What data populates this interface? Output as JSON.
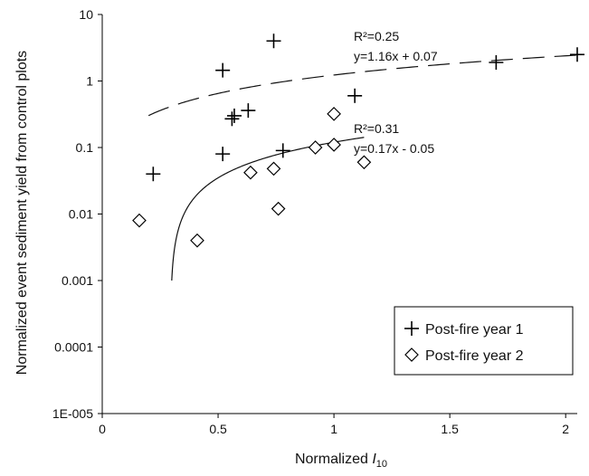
{
  "chart_data": {
    "type": "scatter",
    "xlabel": "Normalized ",
    "xlabel_italic": "I",
    "xlabel_sub": "10",
    "ylabel": "Normalized event sediment yield from control plots",
    "xlim": [
      0,
      2.05
    ],
    "ylim": [
      1e-05,
      10
    ],
    "y_scale": "log",
    "grid": false,
    "legend_position": "bottom-right",
    "x_ticks": [
      {
        "value": 0,
        "label": "0"
      },
      {
        "value": 0.5,
        "label": "0.5"
      },
      {
        "value": 1,
        "label": "1"
      },
      {
        "value": 1.5,
        "label": "1.5"
      },
      {
        "value": 2,
        "label": "2"
      }
    ],
    "y_ticks": [
      {
        "value": 10,
        "label": "10"
      },
      {
        "value": 1,
        "label": "1"
      },
      {
        "value": 0.1,
        "label": "0.1"
      },
      {
        "value": 0.01,
        "label": "0.01"
      },
      {
        "value": 0.001,
        "label": "0.001"
      },
      {
        "value": 0.0001,
        "label": "0.0001"
      },
      {
        "value": 1e-05,
        "label": "1E-005"
      }
    ],
    "series": [
      {
        "name": "Post-fire year 1",
        "marker": "plus",
        "points": [
          {
            "x": 0.22,
            "y": 0.04
          },
          {
            "x": 0.52,
            "y": 1.45
          },
          {
            "x": 0.52,
            "y": 0.08
          },
          {
            "x": 0.56,
            "y": 0.27
          },
          {
            "x": 0.57,
            "y": 0.3
          },
          {
            "x": 0.63,
            "y": 0.36
          },
          {
            "x": 0.74,
            "y": 4.0
          },
          {
            "x": 0.78,
            "y": 0.09
          },
          {
            "x": 1.09,
            "y": 0.6
          },
          {
            "x": 1.7,
            "y": 1.9
          },
          {
            "x": 2.05,
            "y": 2.5
          }
        ]
      },
      {
        "name": "Post-fire year 2",
        "marker": "diamond",
        "points": [
          {
            "x": 0.16,
            "y": 0.008
          },
          {
            "x": 0.41,
            "y": 0.004
          },
          {
            "x": 0.64,
            "y": 0.042
          },
          {
            "x": 0.74,
            "y": 0.048
          },
          {
            "x": 0.76,
            "y": 0.012
          },
          {
            "x": 0.92,
            "y": 0.1
          },
          {
            "x": 1.0,
            "y": 0.11
          },
          {
            "x": 1.0,
            "y": 0.32
          },
          {
            "x": 1.13,
            "y": 0.06
          }
        ]
      }
    ],
    "fits": [
      {
        "series": "Post-fire year 1",
        "style": "dashed",
        "slope": 1.16,
        "intercept": 0.07,
        "x_range": [
          0.2,
          2.05
        ],
        "r2_label": "R²=0.25",
        "eq_label": "y=1.16x + 0.07"
      },
      {
        "series": "Post-fire year 2",
        "style": "solid",
        "slope": 0.17,
        "intercept": -0.05,
        "x_range": [
          0.3,
          1.13
        ],
        "r2_label": "R²=0.31",
        "eq_label": "y=0.17x - 0.05"
      }
    ]
  }
}
